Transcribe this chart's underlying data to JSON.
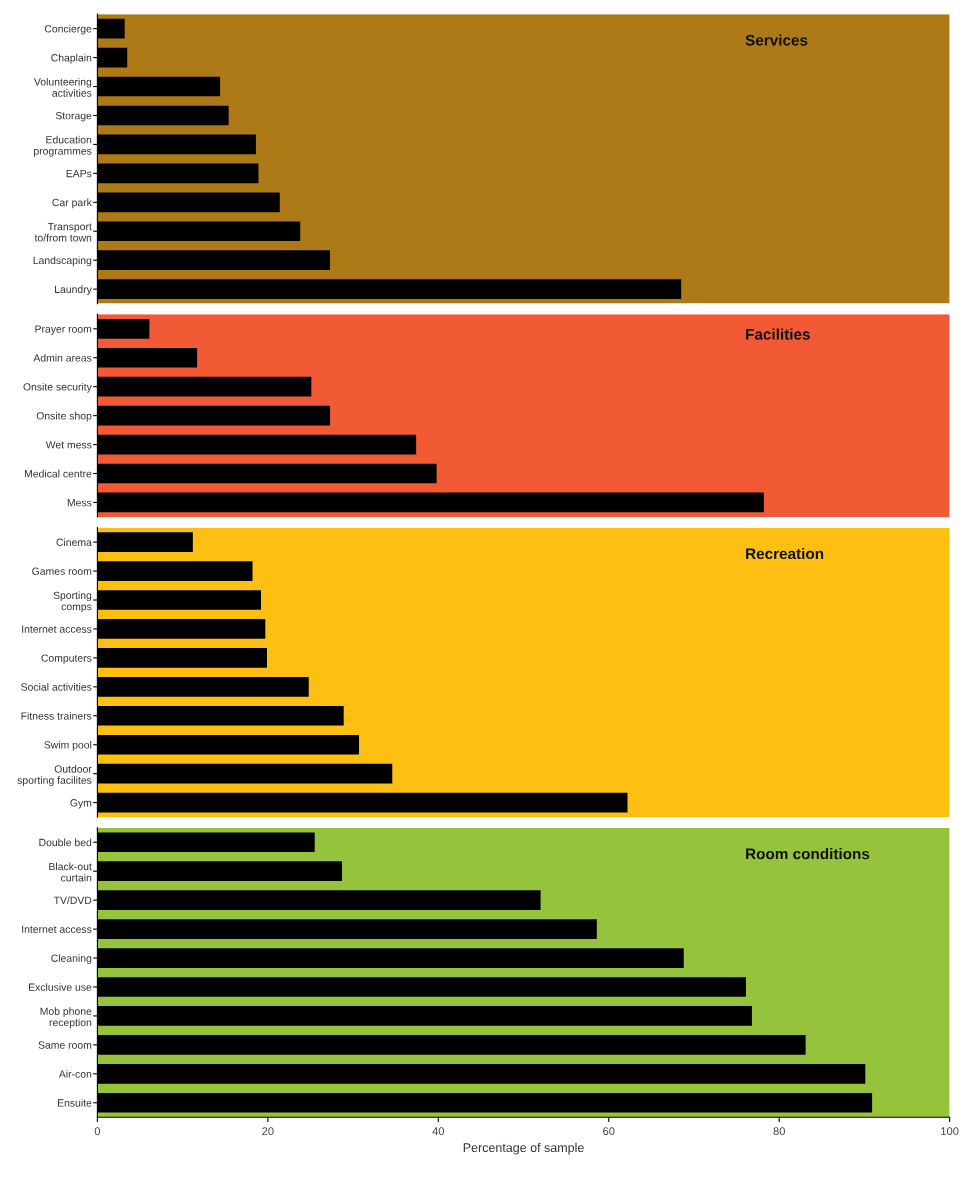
{
  "chart_data": [
    {
      "type": "bar",
      "orientation": "horizontal",
      "title": "Services",
      "categories": [
        "Concierge",
        "Chaplain",
        "Volunteering\nactivities",
        "Storage",
        "Education\nprogrammes",
        "EAPs",
        "Car park",
        "Transport\nto/from town",
        "Landscaping",
        "Laundry"
      ],
      "values": [
        3.2,
        3.5,
        14.4,
        15.4,
        18.6,
        18.9,
        21.4,
        23.8,
        27.3,
        68.5
      ],
      "color": "#000000",
      "xlim": [
        0,
        100
      ],
      "tick_labels": "y",
      "bands": [
        {
          "axis": "x",
          "from": 0,
          "to": 100,
          "color": "#ae7a17"
        }
      ]
    },
    {
      "type": "bar",
      "orientation": "horizontal",
      "title": "Facilities",
      "categories": [
        "Prayer room",
        "Admin areas",
        "Onsite security",
        "Onsite shop",
        "Wet mess",
        "Medical centre",
        "Mess"
      ],
      "values": [
        6.1,
        11.7,
        25.1,
        27.3,
        37.4,
        39.8,
        78.2
      ],
      "color": "#000000",
      "xlim": [
        0,
        100
      ],
      "tick_labels": "y",
      "bands": [
        {
          "axis": "x",
          "from": 0,
          "to": 100,
          "color": "#f15a35"
        }
      ]
    },
    {
      "type": "bar",
      "orientation": "horizontal",
      "title": "Recreation",
      "categories": [
        "Cinema",
        "Games room",
        "Sporting\ncomps",
        "Internet access",
        "Computers",
        "Social activities",
        "Fitness trainers",
        "Swim pool",
        "Outdoor\nsporting facilites",
        "Gym"
      ],
      "values": [
        11.2,
        18.2,
        19.2,
        19.7,
        19.9,
        24.8,
        28.9,
        30.7,
        34.6,
        62.2
      ],
      "color": "#000000",
      "xlim": [
        0,
        100
      ],
      "tick_labels": "y",
      "bands": [
        {
          "axis": "x",
          "from": 0,
          "to": 100,
          "color": "#fdbf12"
        }
      ]
    },
    {
      "type": "bar",
      "orientation": "horizontal",
      "title": "Room conditions",
      "xlabel": "Percentage of sample",
      "categories": [
        "Double bed",
        "Black-out\ncurtain",
        "TV/DVD",
        "Internet access",
        "Cleaning",
        "Exclusive use",
        "Mob phone\nreception",
        "Same room",
        "Air-con",
        "Ensuite"
      ],
      "values": [
        25.5,
        28.7,
        52.0,
        58.6,
        68.8,
        76.1,
        76.8,
        83.1,
        90.1,
        90.9
      ],
      "color": "#000000",
      "xlim": [
        0,
        100
      ],
      "xticks": [
        0,
        20,
        40,
        60,
        80,
        100
      ],
      "bands": [
        {
          "axis": "x",
          "from": 0,
          "to": 100,
          "color": "#95c43c"
        }
      ]
    }
  ]
}
